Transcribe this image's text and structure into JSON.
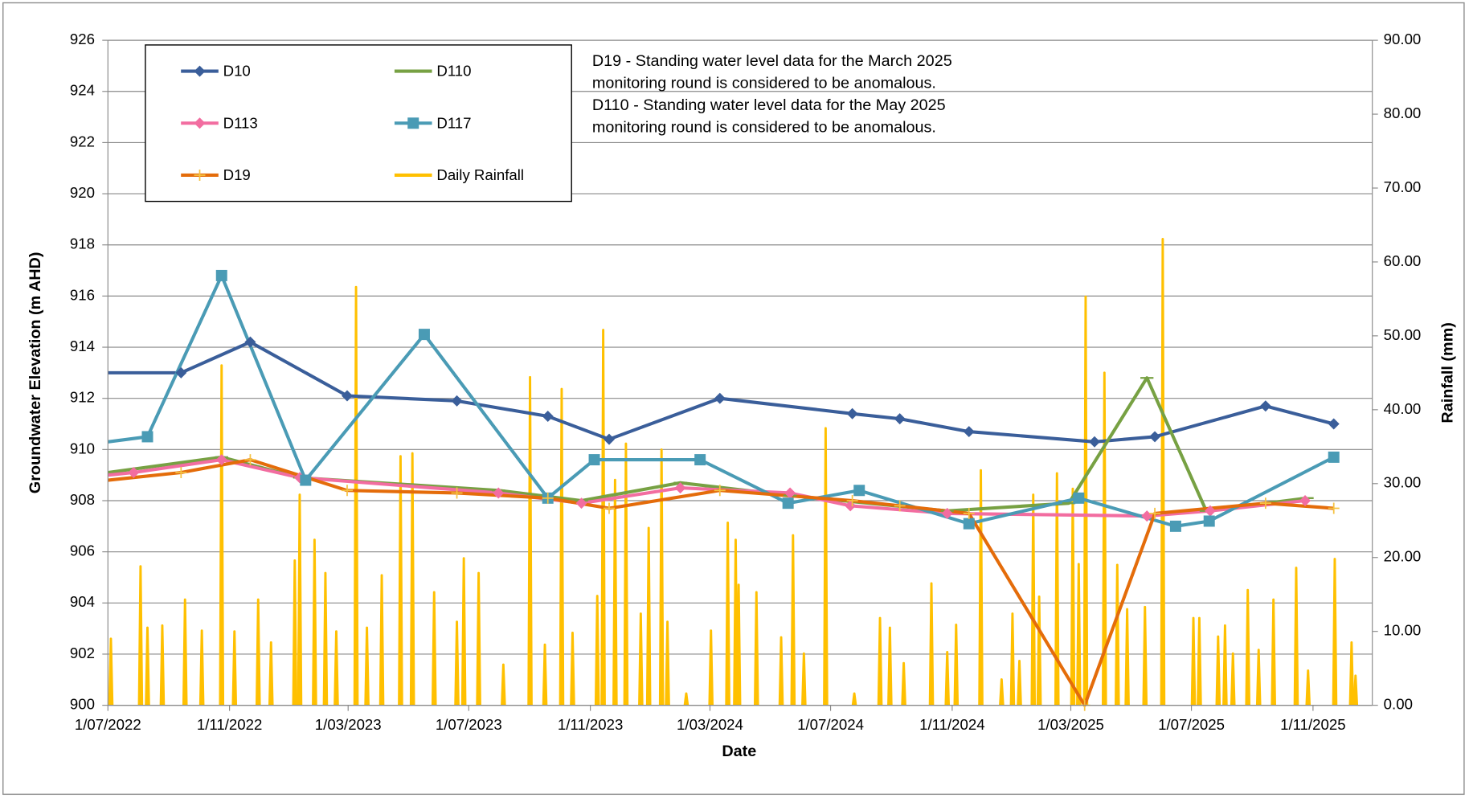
{
  "chart_data": {
    "type": "line",
    "x_label": "Date",
    "y_label": "Groundwater Elevation (m AHD)",
    "y2_label": "Rainfall (mm)",
    "annotations": [
      "D19 - Standing water level data for the March 2025",
      "monitoring round is considered to be anomalous.",
      "D110 - Standing water level data for the May 2025",
      "monitoring round is considered to be anomalous."
    ],
    "legend": "top-left",
    "grid": true,
    "xlim": [
      "2022-07-01",
      "2025-12-31"
    ],
    "xticks": [
      {
        "value": "2022-07-01",
        "label": "1/07/2022"
      },
      {
        "value": "2022-11-01",
        "label": "1/11/2022"
      },
      {
        "value": "2023-03-01",
        "label": "1/03/2023"
      },
      {
        "value": "2023-07-01",
        "label": "1/07/2023"
      },
      {
        "value": "2023-11-01",
        "label": "1/11/2023"
      },
      {
        "value": "2024-03-01",
        "label": "1/03/2024"
      },
      {
        "value": "2024-07-01",
        "label": "1/07/2024"
      },
      {
        "value": "2024-11-01",
        "label": "1/11/2024"
      },
      {
        "value": "2025-03-01",
        "label": "1/03/2025"
      },
      {
        "value": "2025-07-01",
        "label": "1/07/2025"
      },
      {
        "value": "2025-11-01",
        "label": "1/11/2025"
      }
    ],
    "ylim": [
      900,
      926
    ],
    "yticks": [
      900,
      902,
      904,
      906,
      908,
      910,
      912,
      914,
      916,
      918,
      920,
      922,
      924,
      926
    ],
    "y2lim": [
      0,
      90
    ],
    "y2ticks": [
      {
        "value": 0,
        "label": "0.00"
      },
      {
        "value": 10,
        "label": "10.00"
      },
      {
        "value": 20,
        "label": "20.00"
      },
      {
        "value": 30,
        "label": "30.00"
      },
      {
        "value": 40,
        "label": "40.00"
      },
      {
        "value": 50,
        "label": "50.00"
      },
      {
        "value": 60,
        "label": "60.00"
      },
      {
        "value": 70,
        "label": "70.00"
      },
      {
        "value": 80,
        "label": "80.00"
      },
      {
        "value": 90,
        "label": "90.00"
      }
    ],
    "series": [
      {
        "name": "D10",
        "color": "#3a5e9a",
        "marker": "diamond",
        "x": [
          "2022-07-01",
          "2022-09-13",
          "2022-11-22",
          "2023-02-28",
          "2023-06-19",
          "2023-09-19",
          "2023-11-20",
          "2024-03-11",
          "2024-07-23",
          "2024-09-09",
          "2024-11-18",
          "2025-03-25",
          "2025-05-25",
          "2025-09-14",
          "2025-11-22"
        ],
        "values": [
          913.0,
          913.0,
          914.2,
          912.1,
          911.9,
          911.3,
          910.4,
          912.0,
          911.4,
          911.2,
          910.7,
          910.3,
          910.5,
          911.7,
          911.0
        ]
      },
      {
        "name": "D110",
        "color": "#77a143",
        "marker": "dash",
        "x": [
          "2022-07-01",
          "2022-10-24",
          "2023-01-11",
          "2023-07-31",
          "2023-10-23",
          "2024-01-31",
          "2024-05-21",
          "2024-10-27",
          "2025-02-27",
          "2025-05-17",
          "2025-07-16",
          "2025-10-26"
        ],
        "values": [
          909.1,
          909.7,
          908.9,
          908.4,
          908.0,
          908.7,
          908.2,
          907.6,
          907.9,
          912.8,
          907.6,
          908.1
        ]
      },
      {
        "name": "D113",
        "color": "#f26da0",
        "marker": "diamond",
        "x": [
          "2022-07-01",
          "2022-07-27",
          "2022-10-24",
          "2023-01-11",
          "2023-07-31",
          "2023-10-23",
          "2024-01-31",
          "2024-05-21",
          "2024-07-21",
          "2024-10-27",
          "2025-05-17",
          "2025-07-20",
          "2025-10-24"
        ],
        "values": [
          909.0,
          909.1,
          909.6,
          908.9,
          908.3,
          907.9,
          908.5,
          908.3,
          907.8,
          907.5,
          907.4,
          907.6,
          908.0
        ]
      },
      {
        "name": "D117",
        "color": "#4a9bb5",
        "marker": "square",
        "x": [
          "2022-07-01",
          "2022-08-10",
          "2022-10-24",
          "2023-01-17",
          "2023-05-17",
          "2023-09-19",
          "2023-11-05",
          "2024-02-20",
          "2024-05-19",
          "2024-07-30",
          "2024-11-18",
          "2025-03-09",
          "2025-06-15",
          "2025-07-19",
          "2025-11-22"
        ],
        "values": [
          910.3,
          910.5,
          916.8,
          908.8,
          914.5,
          908.1,
          909.6,
          909.6,
          907.9,
          908.4,
          907.1,
          908.1,
          907.0,
          907.2,
          909.7
        ]
      },
      {
        "name": "D19",
        "color": "#e46c0a",
        "marker": "plus",
        "x": [
          "2022-07-01",
          "2022-09-13",
          "2022-11-22",
          "2023-02-28",
          "2023-06-19",
          "2023-09-19",
          "2023-11-20",
          "2024-03-11",
          "2024-07-23",
          "2024-09-09",
          "2024-11-18",
          "2025-03-15",
          "2025-05-25",
          "2025-09-14",
          "2025-11-22"
        ],
        "values": [
          908.8,
          909.1,
          909.6,
          908.4,
          908.3,
          908.1,
          907.7,
          908.4,
          908.0,
          907.8,
          907.5,
          900.0,
          907.5,
          907.9,
          907.7
        ]
      },
      {
        "name": "Daily Rainfall",
        "color": "#ffc000",
        "axis": "y2",
        "x": [
          "2022-07-04",
          "2022-08-03",
          "2022-08-10",
          "2022-08-25",
          "2022-09-17",
          "2022-10-04",
          "2022-10-24",
          "2022-11-06",
          "2022-11-30",
          "2022-12-13",
          "2023-01-06",
          "2023-01-11",
          "2023-01-26",
          "2023-02-06",
          "2023-02-17",
          "2023-03-09",
          "2023-03-20",
          "2023-04-04",
          "2023-04-23",
          "2023-05-05",
          "2023-05-27",
          "2023-06-19",
          "2023-06-26",
          "2023-07-11",
          "2023-08-05",
          "2023-09-01",
          "2023-09-16",
          "2023-10-03",
          "2023-10-14",
          "2023-11-08",
          "2023-11-14",
          "2023-11-26",
          "2023-12-07",
          "2023-12-22",
          "2023-12-30",
          "2024-01-12",
          "2024-01-18",
          "2024-02-06",
          "2024-03-02",
          "2024-03-19",
          "2024-03-27",
          "2024-03-30",
          "2024-04-17",
          "2024-05-12",
          "2024-05-24",
          "2024-06-04",
          "2024-06-26",
          "2024-07-25",
          "2024-08-20",
          "2024-08-30",
          "2024-09-13",
          "2024-10-11",
          "2024-10-27",
          "2024-11-05",
          "2024-11-30",
          "2024-12-21",
          "2025-01-01",
          "2025-01-08",
          "2025-01-22",
          "2025-01-28",
          "2025-02-15",
          "2025-03-03",
          "2025-03-09",
          "2025-03-16",
          "2025-04-04",
          "2025-04-17",
          "2025-04-27",
          "2025-05-15",
          "2025-06-02",
          "2025-07-03",
          "2025-07-09",
          "2025-07-28",
          "2025-08-04",
          "2025-08-12",
          "2025-08-27",
          "2025-09-07",
          "2025-09-22",
          "2025-10-15",
          "2025-10-27",
          "2025-11-23",
          "2025-12-10",
          "2025-12-14"
        ],
        "values": [
          9,
          18.8,
          10.5,
          10.8,
          14.3,
          10.1,
          46,
          10,
          14.3,
          8.5,
          19.6,
          28.5,
          22.4,
          17.9,
          10,
          56.6,
          10.5,
          17.6,
          33.7,
          34.1,
          15.3,
          11.3,
          19.9,
          17.9,
          5.5,
          44.4,
          8.2,
          42.8,
          9.8,
          14.8,
          50.8,
          30.5,
          35.4,
          12.4,
          24,
          34.6,
          11.3,
          1.6,
          10.1,
          24.7,
          22.4,
          16.3,
          15.3,
          9.2,
          23,
          7,
          37.5,
          1.6,
          11.8,
          10.5,
          5.7,
          16.5,
          7.2,
          10.9,
          31.8,
          3.5,
          12.4,
          6,
          28.5,
          14.7,
          31.4,
          29.3,
          19.1,
          55.3,
          45,
          19,
          13,
          13.3,
          63.1,
          11.8,
          11.8,
          9.3,
          10.8,
          7,
          15.6,
          7.5,
          14.3,
          18.6,
          4.7,
          19.8,
          8.5,
          4
        ]
      }
    ]
  }
}
